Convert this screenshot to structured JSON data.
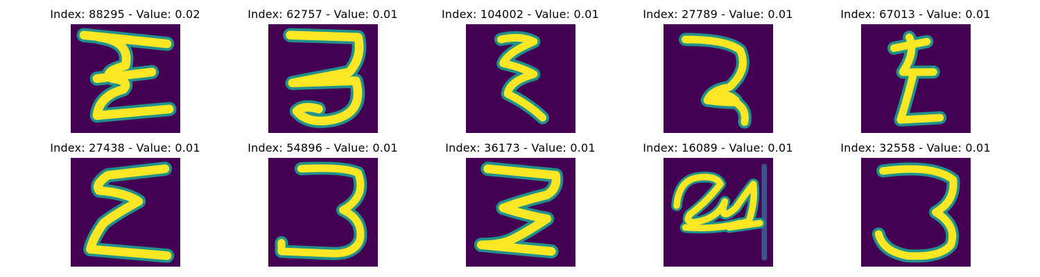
{
  "grid": {
    "rows": 2,
    "cols": 5
  },
  "colors": {
    "background": "#440154",
    "stroke_core": "#fde725",
    "stroke_mid": "#5ec962",
    "stroke_edge": "#21918c",
    "stroke_blue": "#3b528b"
  },
  "panels": [
    {
      "title": "Index: 88295 - Value: 0.02",
      "glyph": "epsilon-wide-with-bar"
    },
    {
      "title": "Index: 62757 - Value: 0.01",
      "glyph": "three-flat-top"
    },
    {
      "title": "Index: 104002 - Value: 0.01",
      "glyph": "epsilon-narrow"
    },
    {
      "title": "Index: 27789 - Value: 0.01",
      "glyph": "hook-curve"
    },
    {
      "title": "Index: 67013 - Value: 0.01",
      "glyph": "zigzag-narrow"
    },
    {
      "title": "Index: 27438 - Value: 0.01",
      "glyph": "epsilon-wide"
    },
    {
      "title": "Index: 54896 - Value: 0.01",
      "glyph": "three-round"
    },
    {
      "title": "Index: 36173 - Value: 0.01",
      "glyph": "three-angular"
    },
    {
      "title": "Index: 16089 - Value: 0.01",
      "glyph": "loop-scribble"
    },
    {
      "title": "Index: 32558 - Value: 0.01",
      "glyph": "three-smooth"
    }
  ]
}
